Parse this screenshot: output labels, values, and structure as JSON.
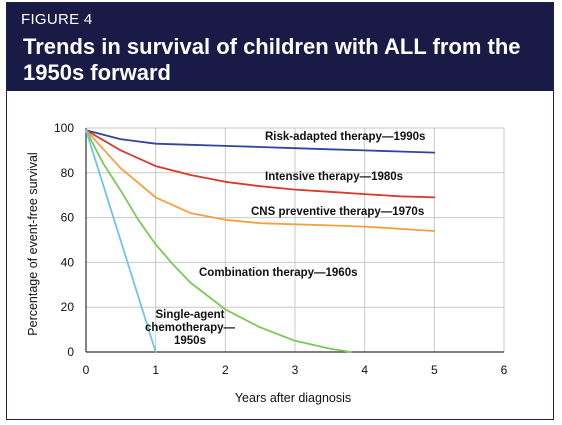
{
  "figure_label": "FIGURE 4",
  "chart_data": {
    "type": "line",
    "title": "Trends in survival of children with ALL from the 1950s forward",
    "xlabel": "Years after diagnosis",
    "ylabel": "Percentage of event-free survival",
    "xlim": [
      0,
      6
    ],
    "ylim": [
      0,
      100
    ],
    "xticks": [
      "0",
      "1",
      "2",
      "3",
      "4",
      "5",
      "6"
    ],
    "yticks": [
      "0",
      "20",
      "40",
      "60",
      "80",
      "100"
    ],
    "grid": true,
    "series": [
      {
        "name": "Risk-adapted therapy—1990s",
        "color": "#2f46a0",
        "points": [
          [
            0,
            99
          ],
          [
            0.5,
            95
          ],
          [
            1,
            93
          ],
          [
            1.5,
            92.5
          ],
          [
            2,
            92
          ],
          [
            2.5,
            91.5
          ],
          [
            3,
            91
          ],
          [
            3.5,
            90.5
          ],
          [
            4,
            90
          ],
          [
            4.5,
            89.5
          ],
          [
            5,
            89
          ]
        ]
      },
      {
        "name": "Intensive therapy—1980s",
        "color": "#d63a2a",
        "points": [
          [
            0,
            99
          ],
          [
            0.5,
            90
          ],
          [
            1,
            83
          ],
          [
            1.5,
            79
          ],
          [
            2,
            76
          ],
          [
            2.5,
            74
          ],
          [
            3,
            72.5
          ],
          [
            3.5,
            71.5
          ],
          [
            4,
            70.5
          ],
          [
            4.5,
            69.5
          ],
          [
            5,
            69
          ]
        ]
      },
      {
        "name": "CNS preventive therapy—1970s",
        "color": "#f5a040",
        "points": [
          [
            0,
            99
          ],
          [
            0.5,
            82
          ],
          [
            1,
            69
          ],
          [
            1.5,
            62
          ],
          [
            2,
            59
          ],
          [
            2.5,
            57.5
          ],
          [
            3,
            57
          ],
          [
            3.5,
            56.5
          ],
          [
            4,
            56
          ],
          [
            4.5,
            55
          ],
          [
            5,
            54
          ]
        ]
      },
      {
        "name": "Combination therapy—1960s",
        "color": "#7cc95a",
        "points": [
          [
            0,
            99
          ],
          [
            0.25,
            84
          ],
          [
            0.5,
            72
          ],
          [
            0.75,
            59
          ],
          [
            1,
            48
          ],
          [
            1.25,
            39
          ],
          [
            1.5,
            31
          ],
          [
            2,
            19
          ],
          [
            2.5,
            11
          ],
          [
            3,
            5
          ],
          [
            3.5,
            1.5
          ],
          [
            3.8,
            0
          ]
        ]
      },
      {
        "name": "Single-agent chemotherapy—1950s",
        "name_lines": [
          "Single-agent",
          "chemotherapy—",
          "1950s"
        ],
        "color": "#6ec6e4",
        "points": [
          [
            0,
            99
          ],
          [
            1,
            0
          ]
        ]
      }
    ]
  }
}
